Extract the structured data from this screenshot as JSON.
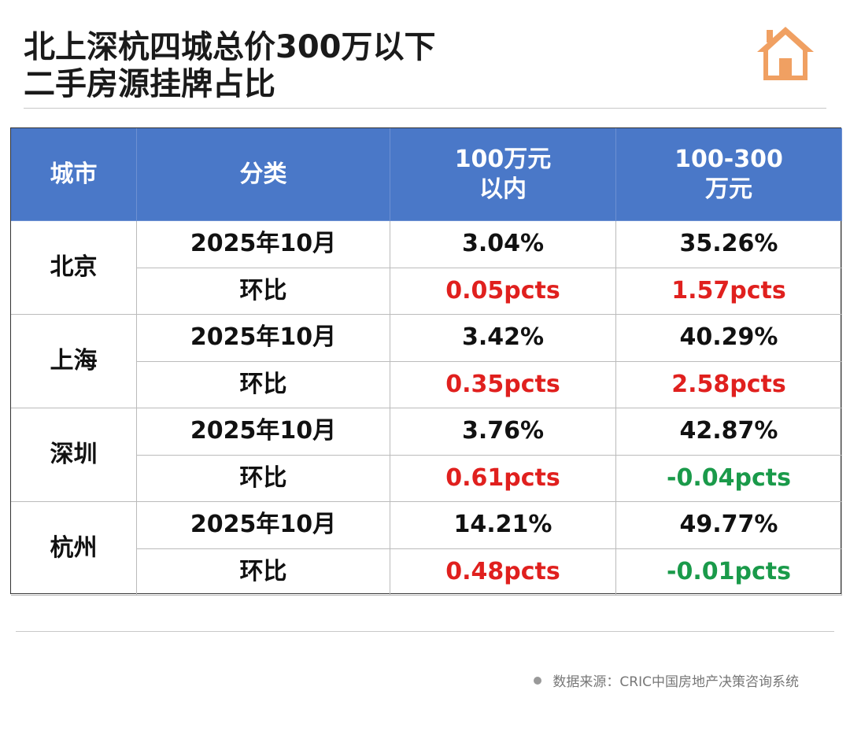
{
  "header": {
    "title": [
      "北上深杭四城总价300万以下",
      "二手房源挂牌占比"
    ]
  },
  "table": {
    "headers": [
      [
        "城市"
      ],
      [
        "分类"
      ],
      [
        "100万元",
        "以内"
      ],
      [
        "100-300",
        "万元"
      ]
    ],
    "cities": [
      {
        "name": "北京",
        "rows": [
          {
            "label": "2025年10月",
            "values": [
              "3.04%",
              "35.26%"
            ],
            "colors": [
              "#111111",
              "#111111"
            ]
          },
          {
            "label": "环比",
            "values": [
              "0.05pcts",
              "1.57pcts"
            ],
            "colors": [
              "#e0201e",
              "#e0201e"
            ]
          }
        ]
      },
      {
        "name": "上海",
        "rows": [
          {
            "label": "2025年10月",
            "values": [
              "3.42%",
              "40.29%"
            ],
            "colors": [
              "#111111",
              "#111111"
            ]
          },
          {
            "label": "环比",
            "values": [
              "0.35pcts",
              "2.58pcts"
            ],
            "colors": [
              "#e0201e",
              "#e0201e"
            ]
          }
        ]
      },
      {
        "name": "深圳",
        "rows": [
          {
            "label": "2025年10月",
            "values": [
              "3.76%",
              "42.87%"
            ],
            "colors": [
              "#111111",
              "#111111"
            ]
          },
          {
            "label": "环比",
            "values": [
              "0.61pcts",
              "-0.04pcts"
            ],
            "colors": [
              "#e0201e",
              "#1a9a4a"
            ]
          }
        ]
      },
      {
        "name": "杭州",
        "rows": [
          {
            "label": "2025年10月",
            "values": [
              "14.21%",
              "49.77%"
            ],
            "colors": [
              "#111111",
              "#111111"
            ]
          },
          {
            "label": "环比",
            "values": [
              "0.48pcts",
              "-0.01pcts"
            ],
            "colors": [
              "#e0201e",
              "#1a9a4a"
            ]
          }
        ]
      }
    ]
  },
  "footer": {
    "source": "数据来源：CRIC中国房地产决策咨询系统"
  }
}
